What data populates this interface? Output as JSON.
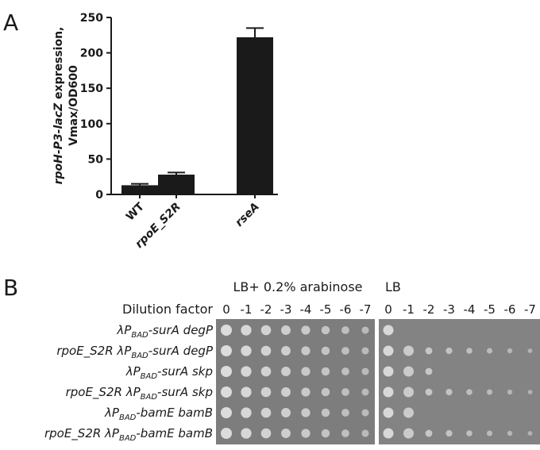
{
  "panel_a": {
    "label": "A",
    "chart_data": {
      "type": "bar",
      "ylabel": [
        "rpoH-P3-lacZ",
        " expression,",
        "Vmax/OD600"
      ],
      "categories": [
        "WT",
        "rpoE_S2R",
        "rseA"
      ],
      "values": [
        13,
        28,
        222
      ],
      "errors": [
        2,
        3,
        13
      ],
      "color": "#1a1a1a",
      "ylim": [
        0,
        250
      ],
      "yticks": [
        0,
        50,
        100,
        150,
        200,
        250
      ]
    }
  },
  "panel_b": {
    "label": "B",
    "headers": [
      "LB+ 0.2% arabinose",
      "LB"
    ],
    "dilution_title": "Dilution factor",
    "dilutions": [
      "0",
      "-1",
      "-2",
      "-3",
      "-4",
      "-5",
      "-6",
      "-7"
    ],
    "rows": [
      [
        "λP",
        "BAD",
        "-surA degP"
      ],
      [
        "rpoE_S2R λP",
        "BAD",
        "-surA degP"
      ],
      [
        "λP",
        "BAD",
        "-surA skp"
      ],
      [
        "rpoE_S2R λP",
        "BAD",
        "-surA skp"
      ],
      [
        "λP",
        "BAD",
        "-bamE bamB"
      ],
      [
        "rpoE_S2R λP",
        "BAD",
        "-bamE bamB"
      ]
    ]
  }
}
